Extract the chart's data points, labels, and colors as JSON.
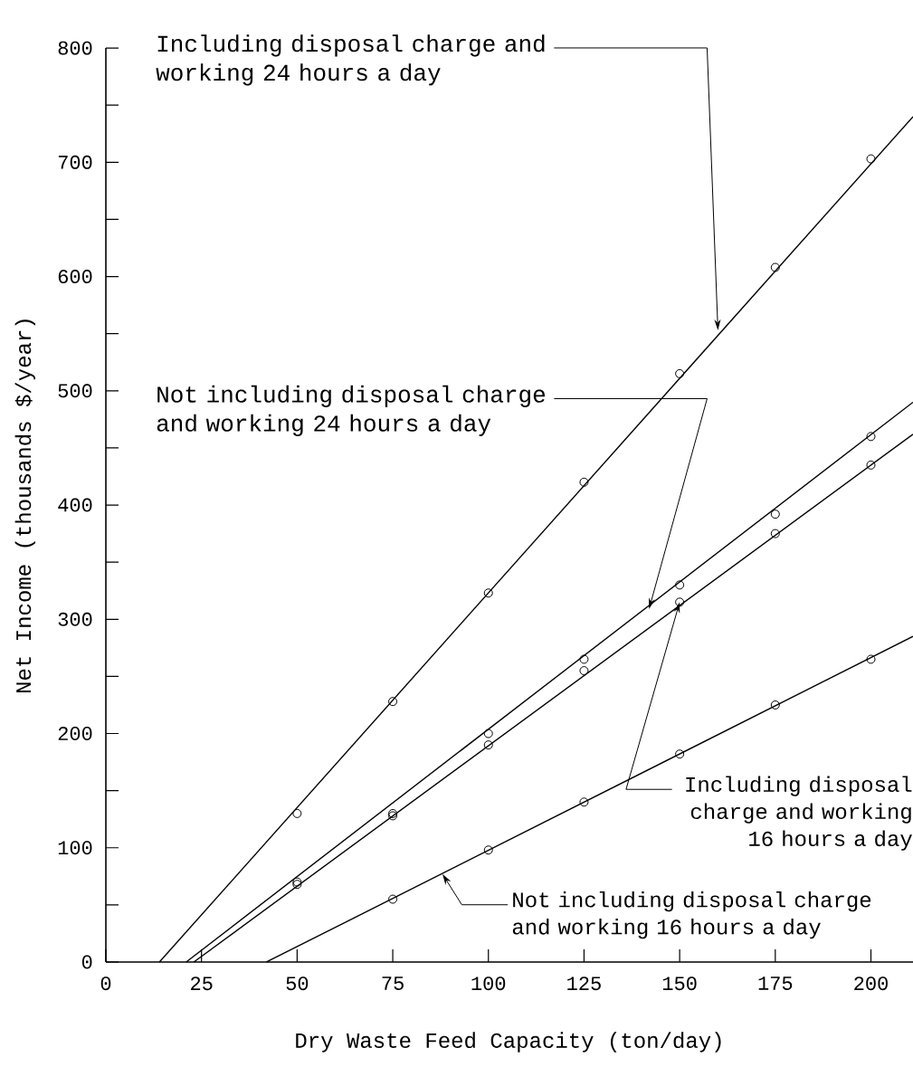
{
  "chart_data": {
    "type": "line",
    "xlabel": "Dry Waste Feed Capacity (ton/day)",
    "ylabel": "Net Income (thousands $/year)",
    "xlim": [
      0,
      211
    ],
    "ylim": [
      0,
      800
    ],
    "xticks": [
      0,
      25,
      50,
      75,
      100,
      125,
      150,
      175,
      200
    ],
    "yticks": [
      0,
      {
        "value": 50,
        "label": null
      },
      100,
      {
        "value": 150,
        "label": null
      },
      200,
      {
        "value": 250,
        "label": null
      },
      300,
      {
        "value": 350,
        "label": null
      },
      400,
      {
        "value": 450,
        "label": null
      },
      500,
      {
        "value": 550,
        "label": null
      },
      600,
      {
        "value": 650,
        "label": null
      },
      700,
      {
        "value": 750,
        "label": null
      },
      800
    ],
    "marker": "circle",
    "series": [
      {
        "type": "scatter",
        "color": "#000000",
        "x": [
          50,
          75,
          100,
          125,
          150,
          175,
          200
        ],
        "values": [
          130,
          228,
          323,
          420,
          515,
          608,
          703
        ]
      },
      {
        "marker": "none",
        "color": "#000000",
        "x": [
          14,
          211
        ],
        "values": [
          0,
          740
        ]
      },
      {
        "type": "scatter",
        "color": "#000000",
        "x": [
          50,
          75,
          100,
          125,
          150,
          175,
          200
        ],
        "values": [
          70,
          130,
          200,
          265,
          330,
          392,
          460
        ]
      },
      {
        "marker": "none",
        "color": "#000000",
        "x": [
          21,
          211
        ],
        "values": [
          0,
          490
        ]
      },
      {
        "type": "scatter",
        "color": "#000000",
        "x": [
          50,
          75,
          100,
          125,
          150,
          175,
          200
        ],
        "values": [
          68,
          128,
          190,
          255,
          315,
          375,
          435
        ]
      },
      {
        "marker": "none",
        "color": "#000000",
        "x": [
          23,
          211
        ],
        "values": [
          0,
          462
        ]
      },
      {
        "type": "scatter",
        "color": "#000000",
        "x": [
          75,
          100,
          125,
          150,
          175,
          200
        ],
        "values": [
          55,
          98,
          140,
          182,
          225,
          265
        ]
      },
      {
        "marker": "none",
        "color": "#000000",
        "x": [
          42,
          211
        ],
        "values": [
          0,
          285
        ]
      }
    ],
    "annotations": [
      {
        "text": "Including disposal charge and working 24 hours a day",
        "x": 160,
        "y": 553
      },
      {
        "text": "Not including disposal charge and working 24 hours a day",
        "x": 142,
        "y": 309
      },
      {
        "text": "Including disposal charge and working 16 hours a day",
        "x": 150,
        "y": 315
      },
      {
        "text": "Not including disposal charge and working 16 hours a day",
        "x": 88,
        "y": 77
      }
    ]
  }
}
